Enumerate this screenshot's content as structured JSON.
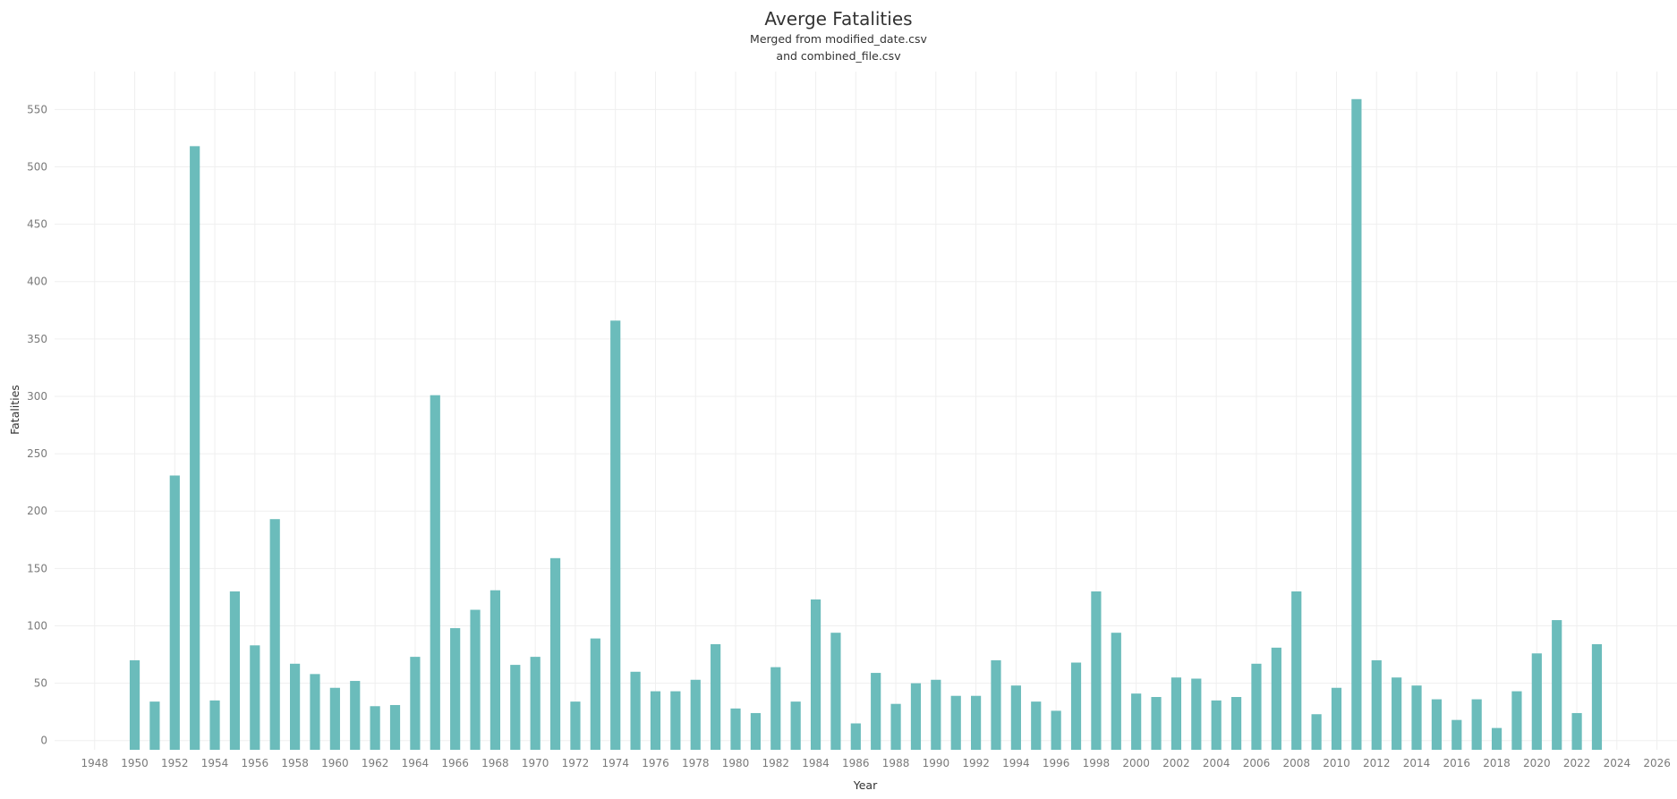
{
  "chart_data": {
    "type": "bar",
    "title": "Averge Fatalities",
    "subtitle_lines": [
      "Merged from modified_date.csv",
      "and combined_file.csv"
    ],
    "xlabel": "Year",
    "ylabel": "Fatalities",
    "xlim": [
      1946,
      2027
    ],
    "ylim": [
      -8,
      583
    ],
    "x_ticks": [
      1948,
      1950,
      1952,
      1954,
      1956,
      1958,
      1960,
      1962,
      1964,
      1966,
      1968,
      1970,
      1972,
      1974,
      1976,
      1978,
      1980,
      1982,
      1984,
      1986,
      1988,
      1990,
      1992,
      1994,
      1996,
      1998,
      2000,
      2002,
      2004,
      2006,
      2008,
      2010,
      2012,
      2014,
      2016,
      2018,
      2020,
      2022,
      2024,
      2026
    ],
    "y_ticks": [
      0,
      50,
      100,
      150,
      200,
      250,
      300,
      350,
      400,
      450,
      500,
      550
    ],
    "grid": true,
    "bar_color": "#6bbcbb",
    "x": [
      1950,
      1951,
      1952,
      1953,
      1954,
      1955,
      1956,
      1957,
      1958,
      1959,
      1960,
      1961,
      1962,
      1963,
      1964,
      1965,
      1966,
      1967,
      1968,
      1969,
      1970,
      1971,
      1972,
      1973,
      1974,
      1975,
      1976,
      1977,
      1978,
      1979,
      1980,
      1981,
      1982,
      1983,
      1984,
      1985,
      1986,
      1987,
      1988,
      1989,
      1990,
      1991,
      1992,
      1993,
      1994,
      1995,
      1996,
      1997,
      1998,
      1999,
      2000,
      2001,
      2002,
      2003,
      2004,
      2005,
      2006,
      2007,
      2008,
      2009,
      2010,
      2011,
      2012,
      2013,
      2014,
      2015,
      2016,
      2017,
      2018,
      2019,
      2020,
      2021,
      2022,
      2023
    ],
    "values": [
      70,
      34,
      231,
      518,
      35,
      130,
      83,
      193,
      67,
      58,
      46,
      52,
      30,
      31,
      73,
      301,
      98,
      114,
      131,
      66,
      73,
      159,
      34,
      89,
      366,
      60,
      43,
      43,
      53,
      84,
      28,
      24,
      64,
      34,
      123,
      94,
      15,
      59,
      32,
      50,
      53,
      39,
      39,
      70,
      48,
      34,
      26,
      68,
      130,
      94,
      41,
      38,
      55,
      54,
      35,
      38,
      67,
      81,
      130,
      23,
      46,
      559,
      70,
      55,
      48,
      36,
      18,
      36,
      11,
      43,
      76,
      105,
      24,
      84
    ]
  }
}
